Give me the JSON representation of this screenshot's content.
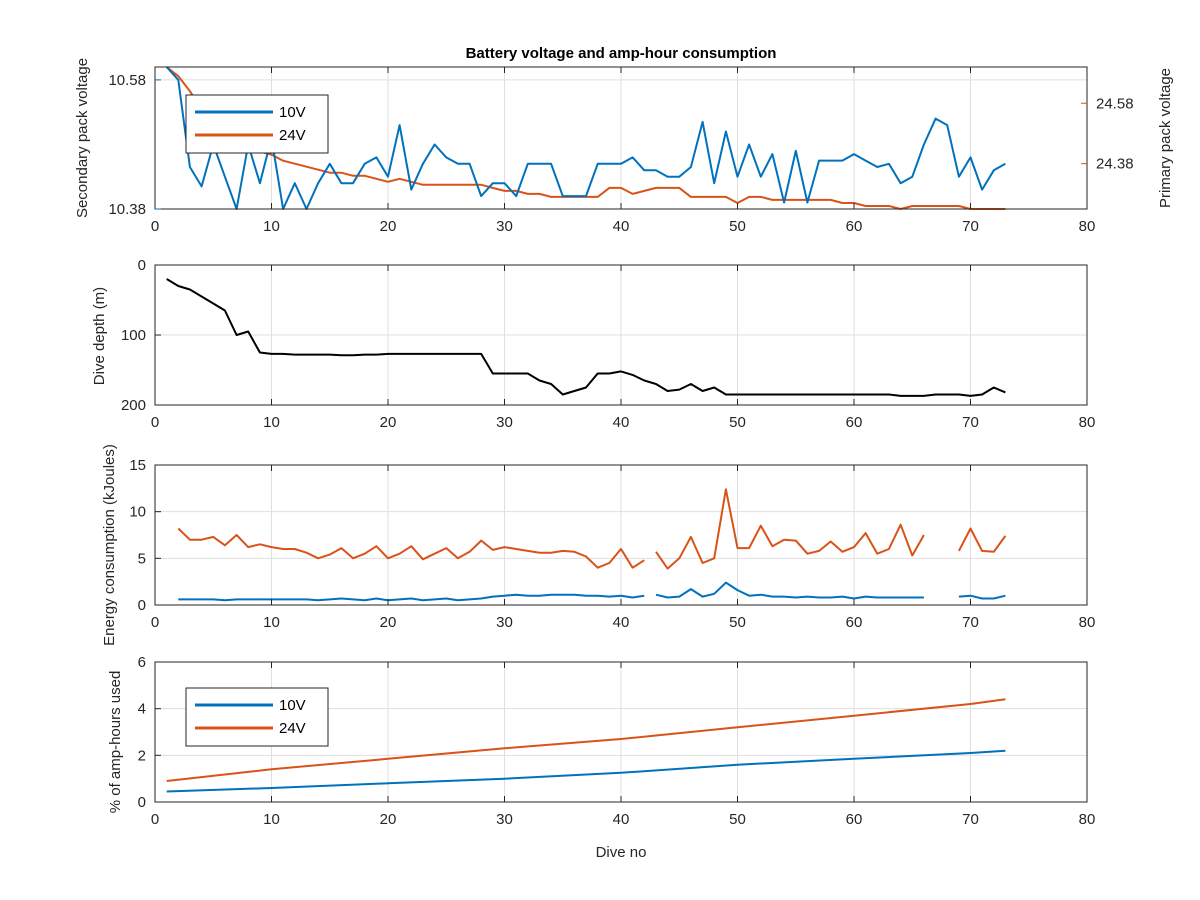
{
  "figure_title": "Battery voltage and amp-hour consumption",
  "colors": {
    "blue": "#0072BD",
    "orange": "#D95319",
    "black": "#000000",
    "grid": "#dfdfdf",
    "axis": "#262626"
  },
  "chart_data": [
    {
      "id": "voltage",
      "type": "line",
      "title": "Battery voltage and amp-hour consumption",
      "xlabel": "",
      "xlim": [
        0,
        80
      ],
      "xticks": [
        0,
        10,
        20,
        30,
        40,
        50,
        60,
        70,
        80
      ],
      "ylabel_left": "Secondary pack voltage",
      "ylim_left": [
        10.38,
        10.6
      ],
      "yticks_left": [
        10.38,
        10.58
      ],
      "ylabel_right": "Primary pack voltage",
      "ylim_right": [
        24.23,
        24.7
      ],
      "yticks_right": [
        24.38,
        24.58
      ],
      "grid": true,
      "legend": {
        "position": "top-left",
        "entries": [
          "10V",
          "24V"
        ]
      },
      "series": [
        {
          "name": "10V",
          "axis": "left",
          "color": "#0072BD",
          "x": [
            1,
            2,
            3,
            4,
            5,
            6,
            7,
            8,
            9,
            10,
            11,
            12,
            13,
            14,
            15,
            16,
            17,
            18,
            19,
            20,
            21,
            22,
            23,
            24,
            25,
            26,
            27,
            28,
            29,
            30,
            31,
            32,
            33,
            34,
            35,
            36,
            37,
            38,
            39,
            40,
            41,
            42,
            43,
            44,
            45,
            46,
            47,
            48,
            49,
            50,
            51,
            52,
            53,
            54,
            55,
            56,
            57,
            58,
            59,
            60,
            61,
            62,
            63,
            64,
            65,
            66,
            67,
            68,
            69,
            70,
            71,
            72,
            73
          ],
          "y": [
            10.6,
            10.58,
            10.445,
            10.415,
            10.48,
            10.43,
            10.38,
            10.48,
            10.42,
            10.49,
            10.38,
            10.42,
            10.38,
            10.42,
            10.45,
            10.42,
            10.42,
            10.45,
            10.46,
            10.43,
            10.51,
            10.41,
            10.45,
            10.48,
            10.46,
            10.45,
            10.45,
            10.4,
            10.42,
            10.42,
            10.4,
            10.45,
            10.45,
            10.45,
            10.4,
            10.4,
            10.4,
            10.45,
            10.45,
            10.45,
            10.46,
            10.44,
            10.44,
            10.43,
            10.43,
            10.445,
            10.515,
            10.42,
            10.5,
            10.43,
            10.48,
            10.43,
            10.465,
            10.39,
            10.47,
            10.39,
            10.455,
            10.455,
            10.455,
            10.465,
            10.455,
            10.445,
            10.45,
            10.42,
            10.43,
            10.48,
            10.52,
            10.51,
            10.43,
            10.46,
            10.41,
            10.44,
            10.45
          ]
        },
        {
          "name": "24V",
          "axis": "right",
          "color": "#D95319",
          "x": [
            1,
            2,
            3,
            4,
            5,
            6,
            7,
            8,
            9,
            10,
            11,
            12,
            13,
            14,
            15,
            16,
            17,
            18,
            19,
            20,
            21,
            22,
            23,
            24,
            25,
            26,
            27,
            28,
            29,
            30,
            31,
            32,
            33,
            34,
            35,
            36,
            37,
            38,
            39,
            40,
            41,
            42,
            43,
            44,
            45,
            46,
            47,
            48,
            49,
            50,
            51,
            52,
            53,
            54,
            55,
            56,
            57,
            58,
            59,
            60,
            61,
            62,
            63,
            64,
            65,
            66,
            67,
            68,
            69,
            70,
            71,
            72,
            73
          ],
          "y": [
            24.7,
            24.67,
            24.62,
            24.56,
            24.5,
            24.46,
            24.44,
            24.43,
            24.42,
            24.41,
            24.39,
            24.38,
            24.37,
            24.36,
            24.35,
            24.35,
            24.34,
            24.34,
            24.33,
            24.32,
            24.33,
            24.32,
            24.31,
            24.31,
            24.31,
            24.31,
            24.31,
            24.31,
            24.3,
            24.29,
            24.29,
            24.28,
            24.28,
            24.27,
            24.27,
            24.27,
            24.27,
            24.27,
            24.3,
            24.3,
            24.28,
            24.29,
            24.3,
            24.3,
            24.3,
            24.27,
            24.27,
            24.27,
            24.27,
            24.25,
            24.27,
            24.27,
            24.26,
            24.26,
            24.26,
            24.26,
            24.26,
            24.26,
            24.25,
            24.25,
            24.24,
            24.24,
            24.24,
            24.23,
            24.24,
            24.24,
            24.24,
            24.24,
            24.24,
            24.23,
            24.23,
            24.23,
            24.23
          ]
        }
      ]
    },
    {
      "id": "depth",
      "type": "line",
      "xlabel": "",
      "ylabel": "Dive depth (m)",
      "xlim": [
        0,
        80
      ],
      "xticks": [
        0,
        10,
        20,
        30,
        40,
        50,
        60,
        70,
        80
      ],
      "ylim": [
        0,
        200
      ],
      "yticks": [
        0,
        100,
        200
      ],
      "y_reversed": true,
      "grid": true,
      "series": [
        {
          "name": "",
          "color": "#000000",
          "x": [
            1,
            2,
            3,
            4,
            5,
            6,
            7,
            8,
            9,
            10,
            11,
            12,
            13,
            14,
            15,
            16,
            17,
            18,
            19,
            20,
            21,
            22,
            23,
            24,
            25,
            26,
            27,
            28,
            29,
            30,
            31,
            32,
            33,
            34,
            35,
            36,
            37,
            38,
            39,
            40,
            41,
            42,
            43,
            44,
            45,
            46,
            47,
            48,
            49,
            50,
            51,
            52,
            53,
            54,
            55,
            56,
            57,
            58,
            59,
            60,
            61,
            62,
            63,
            64,
            65,
            66,
            67,
            68,
            69,
            70,
            71,
            72,
            73
          ],
          "y": [
            20,
            30,
            35,
            45,
            55,
            65,
            100,
            95,
            125,
            127,
            127,
            128,
            128,
            128,
            128,
            129,
            129,
            128,
            128,
            127,
            127,
            127,
            127,
            127,
            127,
            127,
            127,
            127,
            155,
            155,
            155,
            155,
            165,
            170,
            185,
            180,
            175,
            155,
            155,
            152,
            157,
            165,
            170,
            180,
            178,
            170,
            180,
            175,
            185,
            185,
            185,
            185,
            185,
            185,
            185,
            185,
            185,
            185,
            185,
            185,
            185,
            185,
            185,
            187,
            187,
            187,
            185,
            185,
            185,
            187,
            185,
            175,
            182
          ]
        }
      ]
    },
    {
      "id": "energy",
      "type": "line",
      "xlabel": "",
      "ylabel": "Energy consumption (kJoules)",
      "xlim": [
        0,
        80
      ],
      "xticks": [
        0,
        10,
        20,
        30,
        40,
        50,
        60,
        70,
        80
      ],
      "ylim": [
        0,
        15
      ],
      "yticks": [
        0,
        5,
        10,
        15
      ],
      "grid": true,
      "series": [
        {
          "name": "24V",
          "color": "#D95319",
          "x": [
            2,
            3,
            4,
            5,
            6,
            7,
            8,
            9,
            10,
            11,
            12,
            13,
            14,
            15,
            16,
            17,
            18,
            19,
            20,
            21,
            22,
            23,
            24,
            25,
            26,
            27,
            28,
            29,
            30,
            31,
            32,
            33,
            34,
            35,
            36,
            37,
            38,
            39,
            40,
            41,
            42,
            null,
            43,
            44,
            45,
            46,
            47,
            48,
            49,
            50,
            51,
            52,
            53,
            54,
            55,
            56,
            57,
            58,
            59,
            60,
            61,
            62,
            63,
            64,
            65,
            66,
            null,
            69,
            70,
            71,
            72,
            73
          ],
          "y": [
            8.2,
            7,
            7,
            7.3,
            6.4,
            7.5,
            6.2,
            6.5,
            6.2,
            6,
            6,
            5.6,
            5,
            5.4,
            6.1,
            5,
            5.5,
            6.3,
            5,
            5.5,
            6.3,
            4.9,
            5.5,
            6.1,
            5,
            5.7,
            6.9,
            5.9,
            6.2,
            6,
            5.8,
            5.6,
            5.6,
            5.8,
            5.7,
            5.2,
            4,
            4.5,
            6,
            4,
            4.8,
            null,
            5.7,
            3.9,
            5,
            7.3,
            4.5,
            5,
            12.4,
            6.1,
            6.1,
            8.5,
            6.3,
            7,
            6.9,
            5.5,
            5.8,
            6.8,
            5.7,
            6.2,
            7.7,
            5.5,
            6,
            8.6,
            5.3,
            7.5,
            null,
            5.8,
            8.2,
            5.8,
            5.7,
            7.4
          ]
        },
        {
          "name": "10V",
          "color": "#0072BD",
          "x": [
            2,
            3,
            4,
            5,
            6,
            7,
            8,
            9,
            10,
            11,
            12,
            13,
            14,
            15,
            16,
            17,
            18,
            19,
            20,
            21,
            22,
            23,
            24,
            25,
            26,
            27,
            28,
            29,
            30,
            31,
            32,
            33,
            34,
            35,
            36,
            37,
            38,
            39,
            40,
            41,
            42,
            null,
            43,
            44,
            45,
            46,
            47,
            48,
            49,
            50,
            51,
            52,
            53,
            54,
            55,
            56,
            57,
            58,
            59,
            60,
            61,
            62,
            63,
            64,
            65,
            66,
            null,
            69,
            70,
            71,
            72,
            73
          ],
          "y": [
            0.6,
            0.6,
            0.6,
            0.6,
            0.5,
            0.6,
            0.6,
            0.6,
            0.6,
            0.6,
            0.6,
            0.6,
            0.5,
            0.6,
            0.7,
            0.6,
            0.5,
            0.7,
            0.5,
            0.6,
            0.7,
            0.5,
            0.6,
            0.7,
            0.5,
            0.6,
            0.7,
            0.9,
            1,
            1.1,
            1,
            1,
            1.1,
            1.1,
            1.1,
            1,
            1,
            0.9,
            1,
            0.8,
            1,
            null,
            1.1,
            0.8,
            0.9,
            1.7,
            0.9,
            1.2,
            2.4,
            1.6,
            1,
            1.1,
            0.9,
            0.9,
            0.8,
            0.9,
            0.8,
            0.8,
            0.9,
            0.7,
            0.9,
            0.8,
            0.8,
            0.8,
            0.8,
            0.8,
            null,
            0.9,
            1,
            0.7,
            0.7,
            1
          ]
        }
      ]
    },
    {
      "id": "amphours",
      "type": "line",
      "xlabel": "Dive no",
      "ylabel": "% of amp-hours used",
      "xlim": [
        0,
        80
      ],
      "xticks": [
        0,
        10,
        20,
        30,
        40,
        50,
        60,
        70,
        80
      ],
      "ylim": [
        0,
        6
      ],
      "yticks": [
        0,
        2,
        4,
        6
      ],
      "grid": true,
      "legend": {
        "position": "left-middle",
        "entries": [
          "10V",
          "24V"
        ]
      },
      "series": [
        {
          "name": "10V",
          "color": "#0072BD",
          "x": [
            1,
            10,
            20,
            30,
            40,
            50,
            60,
            70,
            73
          ],
          "y": [
            0.45,
            0.6,
            0.8,
            1.0,
            1.25,
            1.6,
            1.85,
            2.1,
            2.2
          ]
        },
        {
          "name": "24V",
          "color": "#D95319",
          "x": [
            1,
            10,
            20,
            30,
            40,
            50,
            60,
            70,
            73
          ],
          "y": [
            0.9,
            1.4,
            1.85,
            2.3,
            2.7,
            3.2,
            3.7,
            4.2,
            4.4
          ]
        }
      ]
    }
  ]
}
